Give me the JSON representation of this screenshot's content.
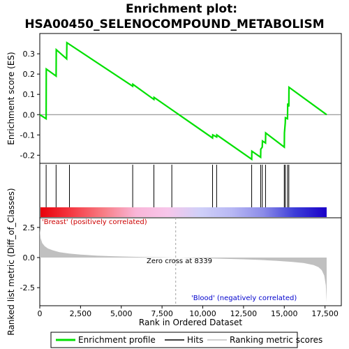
{
  "chart_data": {
    "type": "line",
    "title_line1": "Enrichment plot:",
    "title_line2": "HSA00450_SELENOCOMPOUND_METABOLISM",
    "xlabel": "Rank in Ordered Dataset",
    "x_range": [
      0,
      18500
    ],
    "x_ticks": [
      0,
      2500,
      5000,
      7500,
      10000,
      12500,
      15000,
      17500
    ],
    "x_tick_labels": [
      "0",
      "2,500",
      "5,000",
      "7,500",
      "10,000",
      "12,500",
      "15,000",
      "17,500"
    ],
    "es_panel": {
      "ylabel": "Enrichment score (ES)",
      "ylim": [
        -0.24,
        0.4
      ],
      "y_ticks": [
        -0.2,
        -0.1,
        0.0,
        0.1,
        0.2,
        0.3
      ],
      "y_tick_labels": [
        "-0.2",
        "-0.1",
        "0.0",
        "0.1",
        "0.2",
        "0.3"
      ],
      "line_color": "#00e000",
      "series": {
        "name": "Enrichment profile",
        "x": [
          0,
          390,
          400,
          1000,
          1010,
          1650,
          1660,
          5700,
          5710,
          7000,
          7010,
          10600,
          10610,
          10850,
          10860,
          13000,
          13010,
          13550,
          13560,
          13650,
          13660,
          13850,
          13860,
          15000,
          15010,
          15060,
          15070,
          15200,
          15210,
          15280,
          15290,
          17600
        ],
        "y": [
          0.0,
          -0.02,
          0.225,
          0.19,
          0.32,
          0.275,
          0.355,
          0.14,
          0.15,
          0.075,
          0.085,
          -0.115,
          -0.1,
          -0.11,
          -0.1,
          -0.22,
          -0.18,
          -0.21,
          -0.17,
          -0.16,
          -0.13,
          -0.14,
          -0.09,
          -0.16,
          -0.09,
          -0.04,
          -0.015,
          -0.02,
          0.055,
          0.04,
          0.135,
          0.0
        ]
      }
    },
    "hits": [
      390,
      1000,
      1820,
      5700,
      7000,
      8100,
      10600,
      10850,
      13000,
      13550,
      13650,
      13850,
      15000,
      15060,
      15200,
      15280
    ],
    "bar_gradient": [
      "#e8000a",
      "#f53b45",
      "#f77e86",
      "#f9b6d8",
      "#f7c6ea",
      "#d0d0f8",
      "#b8b8f4",
      "#8c8ce8",
      "#3c3cd8",
      "#1a00c8"
    ],
    "metric_panel": {
      "ylabel": "Ranked list metric (Diff_of_Classes)",
      "ylim": [
        -4.0,
        3.3
      ],
      "y_ticks": [
        -2.5,
        0.0,
        2.5
      ],
      "y_tick_labels": [
        "-2.5",
        "0.0",
        "2.5"
      ],
      "fill_color": "#c0c0c0",
      "x": [
        0,
        50,
        150,
        300,
        500,
        800,
        1200,
        1800,
        2500,
        3500,
        4500,
        5500,
        6500,
        7500,
        8339,
        9500,
        10500,
        11500,
        12500,
        13500,
        14500,
        15500,
        16200,
        16800,
        17100,
        17300,
        17450,
        17550,
        17600
      ],
      "y": [
        2.4,
        1.6,
        1.2,
        0.95,
        0.75,
        0.6,
        0.45,
        0.33,
        0.24,
        0.16,
        0.11,
        0.07,
        0.04,
        0.02,
        0.0,
        -0.04,
        -0.07,
        -0.11,
        -0.15,
        -0.2,
        -0.27,
        -0.36,
        -0.46,
        -0.62,
        -0.8,
        -1.05,
        -1.5,
        -2.3,
        -3.7
      ]
    },
    "zero_cross_label": "Zero cross at 8339",
    "zero_cross_x": 8339,
    "positive_label": "'Breast' (positively correlated)",
    "negative_label": "'Blood' (negatively correlated)",
    "positive_color": "#cc0000",
    "negative_color": "#0000cc",
    "legend": [
      {
        "label": "Enrichment profile",
        "color": "#00e000"
      },
      {
        "label": "Hits",
        "color": "#000000"
      },
      {
        "label": "Ranking metric scores",
        "color": "#c0c0c0"
      }
    ]
  }
}
